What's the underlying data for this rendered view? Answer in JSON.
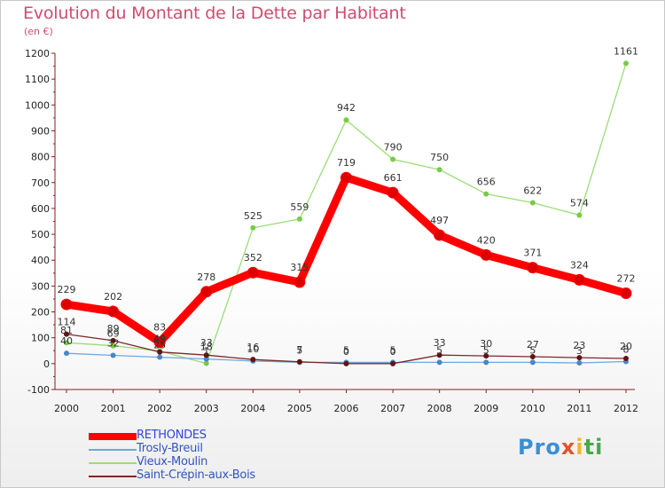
{
  "chart_data": {
    "type": "line",
    "title": "Evolution du Montant de la Dette par Habitant",
    "unit_label": "(en €)",
    "xlabel": "",
    "ylabel": "",
    "ylim": [
      -100,
      1200
    ],
    "yticks": [
      -100,
      0,
      100,
      200,
      300,
      400,
      500,
      600,
      700,
      800,
      900,
      1000,
      1100,
      1200
    ],
    "categories": [
      "2000",
      "2001",
      "2002",
      "2003",
      "2004",
      "2005",
      "2006",
      "2007",
      "2008",
      "2009",
      "2010",
      "2011",
      "2012"
    ],
    "series": [
      {
        "name": "RETHONDES",
        "color": "#ff0000",
        "marker": "#dd0000",
        "labels": true,
        "values": [
          229,
          202,
          83,
          278,
          352,
          315,
          719,
          661,
          497,
          420,
          371,
          324,
          272
        ]
      },
      {
        "name": "Trosly-Breuil",
        "color": "#6fa8dc",
        "marker": "#4a86c8",
        "labels": true,
        "values": [
          40,
          32,
          25,
          18,
          10,
          5,
          5,
          5,
          5,
          5,
          5,
          3,
          8
        ]
      },
      {
        "name": "Vieux-Moulin",
        "color": "#99dd77",
        "marker": "#77cc44",
        "labels": true,
        "values": [
          81,
          69,
          49,
          1,
          525,
          559,
          942,
          790,
          750,
          656,
          622,
          574,
          1161
        ]
      },
      {
        "name": "Saint-Crépin-aux-Bois",
        "color": "#7a2a2a",
        "marker": "#661111",
        "labels": true,
        "values": [
          114,
          89,
          45,
          33,
          16,
          7,
          0,
          0,
          33,
          30,
          27,
          23,
          20
        ]
      }
    ],
    "legend_position": "bottom-left"
  },
  "logo": {
    "parts": [
      {
        "text": "Pro",
        "color": "#3a8fd6"
      },
      {
        "text": "x",
        "color": "#e0552a"
      },
      {
        "text": "i",
        "color": "#f2b722"
      },
      {
        "text": "ti",
        "color": "#4aa84a"
      }
    ]
  }
}
